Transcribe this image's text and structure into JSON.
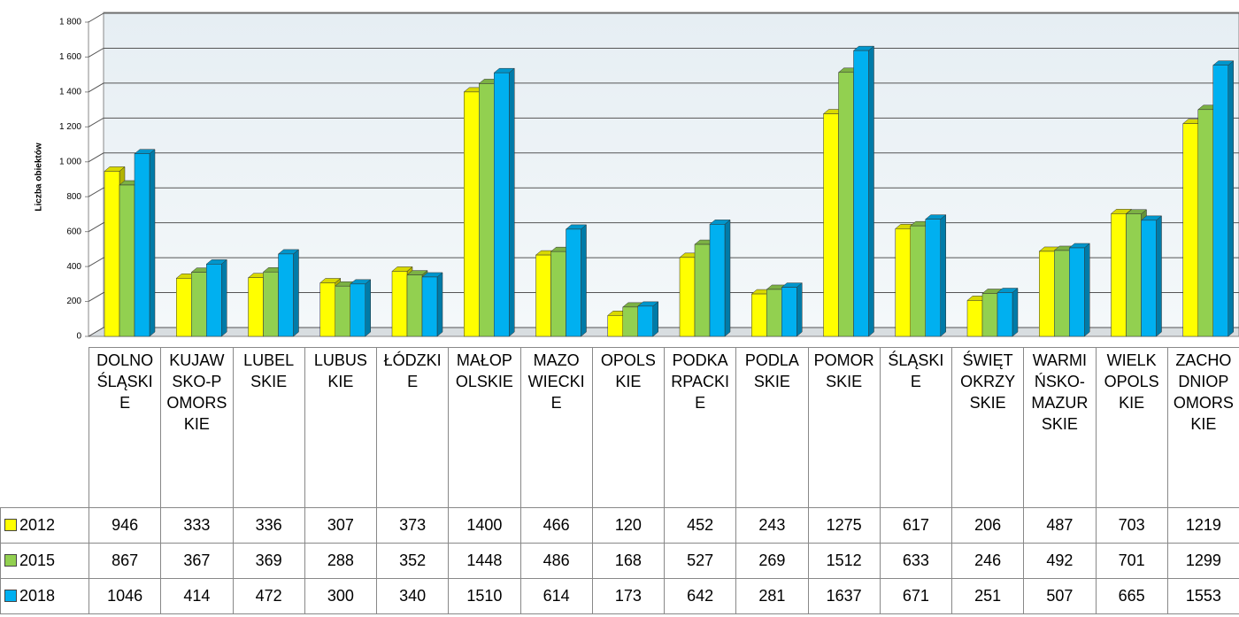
{
  "chart_data": {
    "type": "bar",
    "y_label": "Liczba obiektów",
    "categories": [
      "DOLNOŚLĄSKIE",
      "KUJAWSKO-POMORSKIE",
      "LUBELSKIE",
      "LUBUSKIE",
      "ŁÓDZKIE",
      "MAŁOPOLSKIE",
      "MAZOWIECKIE",
      "OPOLSKIE",
      "PODKARPACKIE",
      "PODLASKIE",
      "POMORSKIE",
      "ŚLĄSKIE",
      "ŚWIĘTOKRZYSKIE",
      "WARMIŃSKO-MAZURSKIE",
      "WIELKOPOLSKIE",
      "ZACHODNIOPOMORSKIE"
    ],
    "series": [
      {
        "name": "2012",
        "color": "#ffff00",
        "values": [
          946,
          333,
          336,
          307,
          373,
          1400,
          466,
          120,
          452,
          243,
          1275,
          617,
          206,
          487,
          703,
          1219
        ]
      },
      {
        "name": "2015",
        "color": "#92d050",
        "values": [
          867,
          367,
          369,
          288,
          352,
          1448,
          486,
          168,
          527,
          269,
          1512,
          633,
          246,
          492,
          701,
          1299
        ]
      },
      {
        "name": "2018",
        "color": "#00b0f0",
        "values": [
          1046,
          414,
          472,
          300,
          340,
          1510,
          614,
          173,
          642,
          281,
          1637,
          671,
          251,
          507,
          665,
          1553
        ]
      }
    ],
    "ylim": [
      0,
      1800
    ],
    "yticks": [
      0,
      200,
      400,
      600,
      800,
      {
        "value": 1000,
        "label": "1 000"
      },
      {
        "value": 1200,
        "label": "1 200"
      },
      {
        "value": 1400,
        "label": "1 400"
      },
      {
        "value": 1600,
        "label": "1 600"
      },
      {
        "value": 1800,
        "label": "1 800"
      }
    ],
    "grid": true
  }
}
